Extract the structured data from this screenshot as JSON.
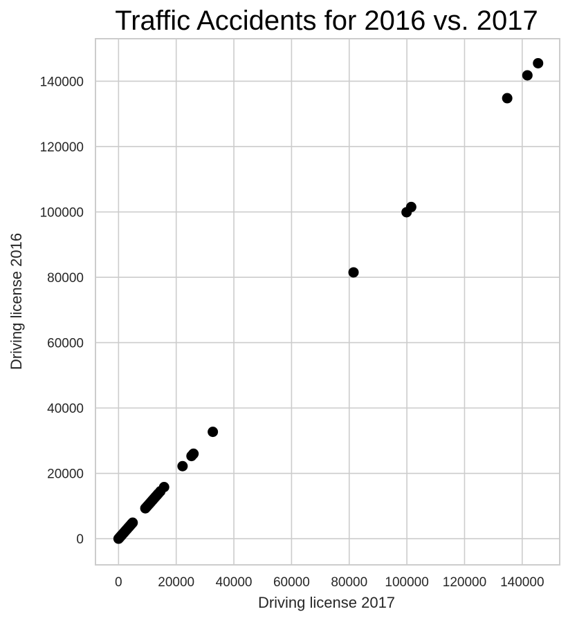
{
  "chart_data": {
    "type": "scatter",
    "title": "Traffic  Accidents  for  2016  vs. 2017",
    "xlabel": "Driving license 2017",
    "ylabel": "Driving license 2016",
    "xlim": [
      -8000,
      153000
    ],
    "ylim": [
      -8000,
      153000
    ],
    "xticks": [
      0,
      20000,
      40000,
      60000,
      80000,
      100000,
      120000,
      140000
    ],
    "yticks": [
      0,
      20000,
      40000,
      60000,
      80000,
      100000,
      120000,
      140000
    ],
    "grid": true,
    "point_color": "#000000",
    "series": [
      {
        "x": [
          0,
          200,
          400,
          600,
          800,
          1000,
          1300,
          1600,
          1900,
          2200,
          2500,
          2800,
          3100,
          3400,
          3700,
          4000,
          4300,
          4600,
          4900,
          9300,
          9800,
          10300,
          10800,
          11300,
          11800,
          12300,
          12800,
          13300,
          13800,
          14500,
          15800,
          22200,
          25300,
          25800,
          26000,
          32700,
          81500,
          99900,
          101500,
          134800,
          141800,
          145500
        ],
        "y": [
          0,
          200,
          400,
          600,
          800,
          1000,
          1300,
          1600,
          1900,
          2200,
          2500,
          2800,
          3100,
          3400,
          3700,
          4000,
          4300,
          4600,
          4900,
          9300,
          9800,
          10300,
          10800,
          11300,
          11800,
          12300,
          12800,
          13300,
          13800,
          14500,
          15800,
          22200,
          25300,
          25800,
          26000,
          32700,
          81500,
          99900,
          101500,
          134800,
          141800,
          145500
        ]
      }
    ]
  },
  "colors": {
    "background": "#ffffff",
    "grid": "#cccccc",
    "spine": "#cccccc",
    "points": "#000000"
  }
}
